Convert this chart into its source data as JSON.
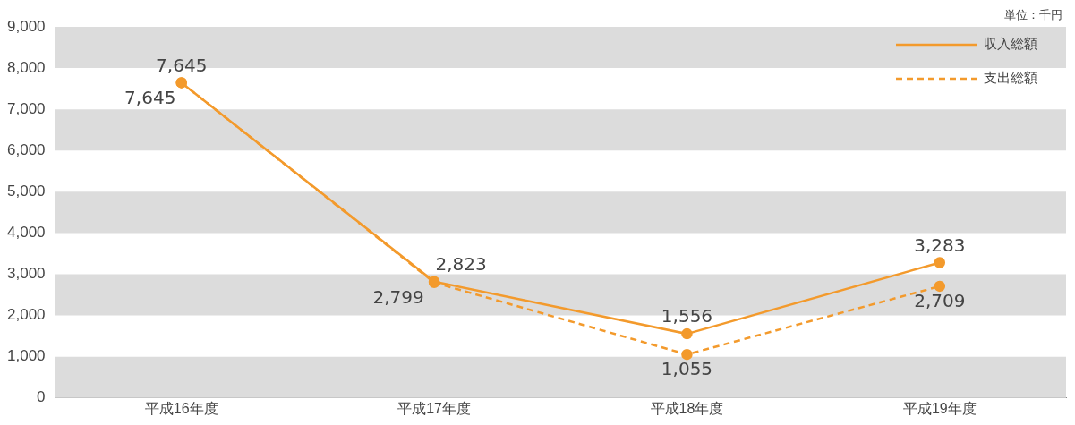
{
  "chart_data": {
    "type": "line",
    "categories": [
      "平成16年度",
      "平成17年度",
      "平成18年度",
      "平成19年度"
    ],
    "series": [
      {
        "name": "収入総額",
        "color": "#f39a2c",
        "values": [
          7645,
          2823,
          1556,
          3283
        ],
        "value_labels": [
          "7,645",
          "2,823",
          "1,556",
          "3,283"
        ],
        "line_style": "solid"
      },
      {
        "name": "支出総額",
        "color": "#f39a2c",
        "values": [
          7645,
          2799,
          1055,
          2709
        ],
        "value_labels": [
          "7,645",
          "2,799",
          "1,055",
          "2,709"
        ],
        "line_style": "dashed"
      }
    ],
    "ylim": [
      0,
      9000
    ],
    "yticks": [
      {
        "value": 0,
        "label": "0"
      },
      {
        "value": 1000,
        "label": "1,000"
      },
      {
        "value": 2000,
        "label": "2,000"
      },
      {
        "value": 3000,
        "label": "3,000"
      },
      {
        "value": 4000,
        "label": "4,000"
      },
      {
        "value": 5000,
        "label": "5,000"
      },
      {
        "value": 6000,
        "label": "6,000"
      },
      {
        "value": 7000,
        "label": "7,000"
      },
      {
        "value": 8000,
        "label": "8,000"
      },
      {
        "value": 9000,
        "label": "9,000"
      }
    ],
    "bands": [
      {
        "axis": "y",
        "from": 0,
        "to": 1000,
        "color": "#dcdcdc"
      },
      {
        "axis": "y",
        "from": 2000,
        "to": 3000,
        "color": "#dcdcdc"
      },
      {
        "axis": "y",
        "from": 4000,
        "to": 5000,
        "color": "#dcdcdc"
      },
      {
        "axis": "y",
        "from": 6000,
        "to": 7000,
        "color": "#dcdcdc"
      },
      {
        "axis": "y",
        "from": 8000,
        "to": 9000,
        "color": "#dcdcdc"
      }
    ],
    "legend": "top right",
    "marker": "circle",
    "annotations": [
      "単位：千円"
    ]
  }
}
